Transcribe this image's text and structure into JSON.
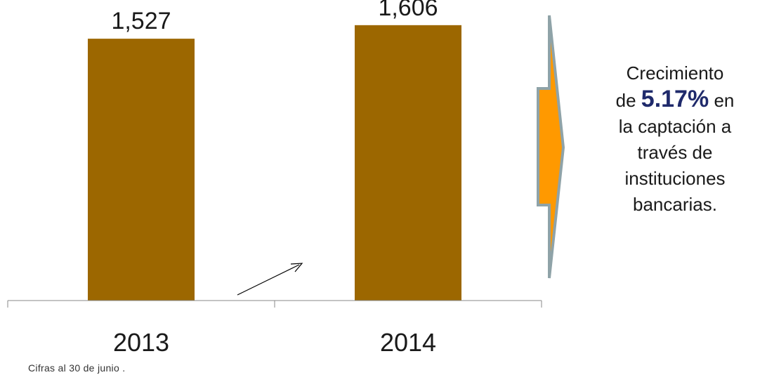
{
  "chart_data": {
    "type": "bar",
    "title": "",
    "xlabel": "",
    "ylabel": "",
    "categories": [
      "2013",
      "2014"
    ],
    "values": [
      1527,
      1606
    ],
    "value_labels": [
      "1,527",
      "1,606"
    ],
    "ylim": [
      0,
      1720
    ],
    "grid": false,
    "legend": "none",
    "colors": {
      "bar": "#9C6700",
      "axis": "#888888",
      "arrow": "#FF9900",
      "arrow_border": "#8FA3A8"
    }
  },
  "callout": {
    "line1": "Crecimiento",
    "prefix": "de",
    "percent": "5.17%",
    "suffix": "en",
    "line3": "la captación a",
    "line4": "través de",
    "line5": "instituciones",
    "line6": "bancarias."
  },
  "footnote": "Cifras al 30 de junio ."
}
